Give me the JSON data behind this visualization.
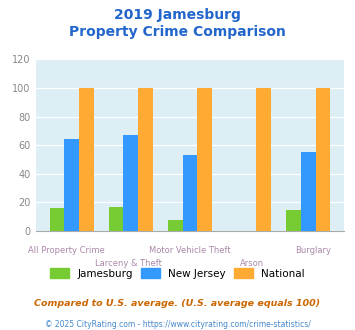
{
  "title_line1": "2019 Jamesburg",
  "title_line2": "Property Crime Comparison",
  "cat_line1": [
    "",
    "Larceny & Theft",
    "",
    "Arson",
    ""
  ],
  "cat_line2": [
    "All Property Crime",
    "",
    "Motor Vehicle Theft",
    "",
    "Burglary"
  ],
  "jamesburg": [
    16,
    17,
    8,
    0,
    15
  ],
  "new_jersey": [
    64,
    67,
    53,
    0,
    55
  ],
  "national": [
    100,
    100,
    100,
    100,
    100
  ],
  "colors": {
    "jamesburg": "#77cc33",
    "new_jersey": "#3399ff",
    "national": "#ffaa33"
  },
  "ylim": [
    0,
    120
  ],
  "yticks": [
    0,
    20,
    40,
    60,
    80,
    100,
    120
  ],
  "title_color": "#2266cc",
  "plot_bg": "#ddeef5",
  "footnote1": "Compared to U.S. average. (U.S. average equals 100)",
  "footnote2": "© 2025 CityRating.com - https://www.cityrating.com/crime-statistics/",
  "footnote1_color": "#cc6600",
  "footnote2_color": "#4488cc",
  "legend_labels": [
    "Jamesburg",
    "New Jersey",
    "National"
  ],
  "bar_width": 0.25
}
